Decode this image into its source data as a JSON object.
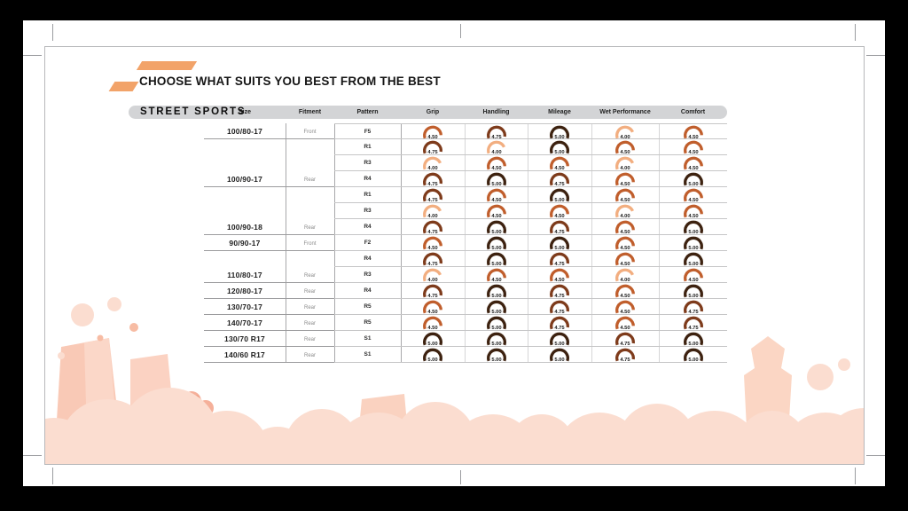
{
  "chart_data": {
    "type": "table",
    "title": "CHOOSE WHAT SUITS YOU BEST FROM THE BEST",
    "section": "STREET SPORTS",
    "columns": [
      "Size",
      "Fitment",
      "Pattern",
      "Grip",
      "Handling",
      "Mileage",
      "Wet Performance",
      "Comfort"
    ],
    "rating_columns": [
      "Grip",
      "Handling",
      "Mileage",
      "Wet Performance",
      "Comfort"
    ],
    "rating_max": 5,
    "rating_colors": {
      "4.00": "#F2AE80",
      "4.50": "#C05E2C",
      "4.75": "#7E3B1B",
      "5.00": "#3D2210"
    },
    "accent_color": "#F2A369",
    "groups": [
      {
        "size": "100/80-17",
        "fitment": "Front",
        "rows": [
          {
            "pattern": "F5",
            "ratings": [
              "4.50",
              "4.75",
              "5.00",
              "4.00",
              "4.50"
            ]
          }
        ]
      },
      {
        "size": "100/90-17",
        "fitment": "Rear",
        "rows": [
          {
            "pattern": "R1",
            "ratings": [
              "4.75",
              "4.00",
              "5.00",
              "4.50",
              "4.50"
            ]
          },
          {
            "pattern": "R3",
            "ratings": [
              "4.00",
              "4.50",
              "4.50",
              "4.00",
              "4.50"
            ]
          },
          {
            "pattern": "R4",
            "ratings": [
              "4.75",
              "5.00",
              "4.75",
              "4.50",
              "5.00"
            ]
          }
        ]
      },
      {
        "size": "100/90-18",
        "fitment": "Rear",
        "rows": [
          {
            "pattern": "R1",
            "ratings": [
              "4.75",
              "4.50",
              "5.00",
              "4.50",
              "4.50"
            ]
          },
          {
            "pattern": "R3",
            "ratings": [
              "4.00",
              "4.50",
              "4.50",
              "4.00",
              "4.50"
            ]
          },
          {
            "pattern": "R4",
            "ratings": [
              "4.75",
              "5.00",
              "4.75",
              "4.50",
              "5.00"
            ]
          }
        ]
      },
      {
        "size": "90/90-17",
        "fitment": "Front",
        "rows": [
          {
            "pattern": "F2",
            "ratings": [
              "4.50",
              "5.00",
              "5.00",
              "4.50",
              "5.00"
            ]
          }
        ]
      },
      {
        "size": "110/80-17",
        "fitment": "Rear",
        "rows": [
          {
            "pattern": "R4",
            "ratings": [
              "4.75",
              "5.00",
              "4.75",
              "4.50",
              "5.00"
            ]
          },
          {
            "pattern": "R3",
            "ratings": [
              "4.00",
              "4.50",
              "4.50",
              "4.00",
              "4.50"
            ]
          }
        ]
      },
      {
        "size": "120/80-17",
        "fitment": "Rear",
        "rows": [
          {
            "pattern": "R4",
            "ratings": [
              "4.75",
              "5.00",
              "4.75",
              "4.50",
              "5.00"
            ]
          }
        ]
      },
      {
        "size": "130/70-17",
        "fitment": "Rear",
        "rows": [
          {
            "pattern": "R5",
            "ratings": [
              "4.50",
              "5.00",
              "4.75",
              "4.50",
              "4.75"
            ]
          }
        ]
      },
      {
        "size": "140/70-17",
        "fitment": "Rear",
        "rows": [
          {
            "pattern": "R5",
            "ratings": [
              "4.50",
              "5.00",
              "4.75",
              "4.50",
              "4.75"
            ]
          }
        ]
      },
      {
        "size": "130/70 R17",
        "fitment": "Rear",
        "rows": [
          {
            "pattern": "S1",
            "ratings": [
              "5.00",
              "5.00",
              "5.00",
              "4.75",
              "5.00"
            ]
          }
        ]
      },
      {
        "size": "140/60 R17",
        "fitment": "Rear",
        "rows": [
          {
            "pattern": "S1",
            "ratings": [
              "5.00",
              "5.00",
              "5.00",
              "4.75",
              "5.00"
            ]
          }
        ]
      }
    ]
  }
}
